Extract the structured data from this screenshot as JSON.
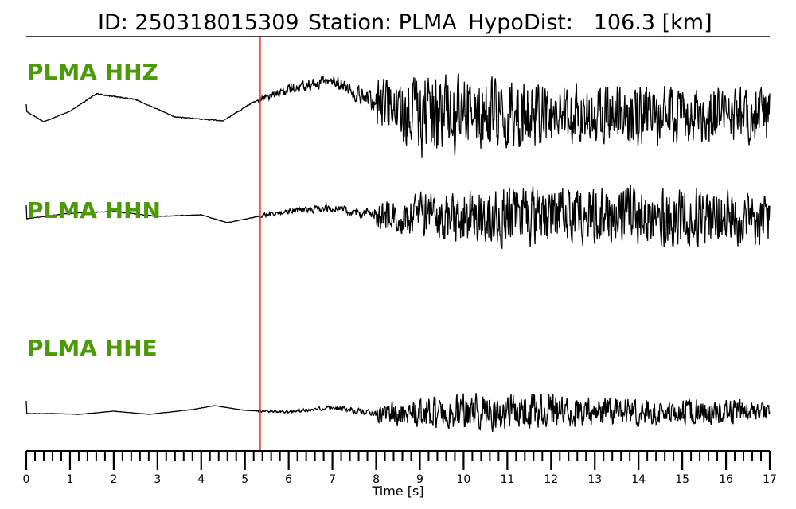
{
  "header": {
    "id_text": "ID: 250318015309",
    "station_text": "Station: PLMA",
    "dist_text": "HypoDist:   106.3 [km]"
  },
  "colors": {
    "channel_label": "#4c9a0a",
    "pick_line": "#e8332a",
    "trace": "#000000"
  },
  "chart_data": {
    "type": "line",
    "xlabel": "Time [s]",
    "xlim": [
      0,
      17
    ],
    "x_major_ticks": [
      0,
      1,
      2,
      3,
      4,
      5,
      6,
      7,
      8,
      9,
      10,
      11,
      12,
      13,
      14,
      15,
      16,
      17
    ],
    "x_minor_step": 0.2,
    "pick_time_s": 5.35,
    "grid": false,
    "legend": "none",
    "series": [
      {
        "name": "PLMA HHZ",
        "waveform_envelope": [
          [
            0,
            0.15
          ],
          [
            0.5,
            0.08
          ],
          [
            1,
            0.1
          ],
          [
            1.6,
            0.2
          ],
          [
            2.5,
            0.15
          ],
          [
            3.5,
            0.12
          ],
          [
            4.5,
            0.15
          ],
          [
            5,
            0.2
          ],
          [
            6,
            0.3
          ],
          [
            7,
            0.4
          ],
          [
            8,
            0.6
          ],
          [
            8.5,
            0.75
          ],
          [
            9,
            1.0
          ],
          [
            9.5,
            1.0
          ],
          [
            10,
            0.95
          ],
          [
            11,
            0.85
          ],
          [
            12,
            0.75
          ],
          [
            13,
            0.7
          ],
          [
            14,
            0.75
          ],
          [
            15,
            0.7
          ],
          [
            16,
            0.7
          ],
          [
            17,
            0.7
          ]
        ]
      },
      {
        "name": "PLMA HHN",
        "waveform_envelope": [
          [
            0,
            0.12
          ],
          [
            1,
            0.1
          ],
          [
            2,
            0.1
          ],
          [
            3,
            0.12
          ],
          [
            4,
            0.1
          ],
          [
            5,
            0.12
          ],
          [
            6,
            0.2
          ],
          [
            7,
            0.3
          ],
          [
            8,
            0.45
          ],
          [
            9,
            0.7
          ],
          [
            10,
            0.85
          ],
          [
            11,
            0.9
          ],
          [
            12,
            0.9
          ],
          [
            13,
            0.85
          ],
          [
            14,
            0.85
          ],
          [
            15,
            0.9
          ],
          [
            16,
            0.9
          ],
          [
            17,
            0.85
          ]
        ]
      },
      {
        "name": "PLMA HHE",
        "waveform_envelope": [
          [
            0,
            0.1
          ],
          [
            1,
            0.08
          ],
          [
            2,
            0.08
          ],
          [
            3,
            0.1
          ],
          [
            4,
            0.1
          ],
          [
            5,
            0.1
          ],
          [
            6,
            0.15
          ],
          [
            7,
            0.2
          ],
          [
            8,
            0.35
          ],
          [
            9,
            0.6
          ],
          [
            10,
            0.7
          ],
          [
            11,
            0.75
          ],
          [
            12,
            0.7
          ],
          [
            13,
            0.6
          ],
          [
            14,
            0.55
          ],
          [
            15,
            0.5
          ],
          [
            16,
            0.5
          ],
          [
            17,
            0.45
          ]
        ]
      }
    ]
  }
}
